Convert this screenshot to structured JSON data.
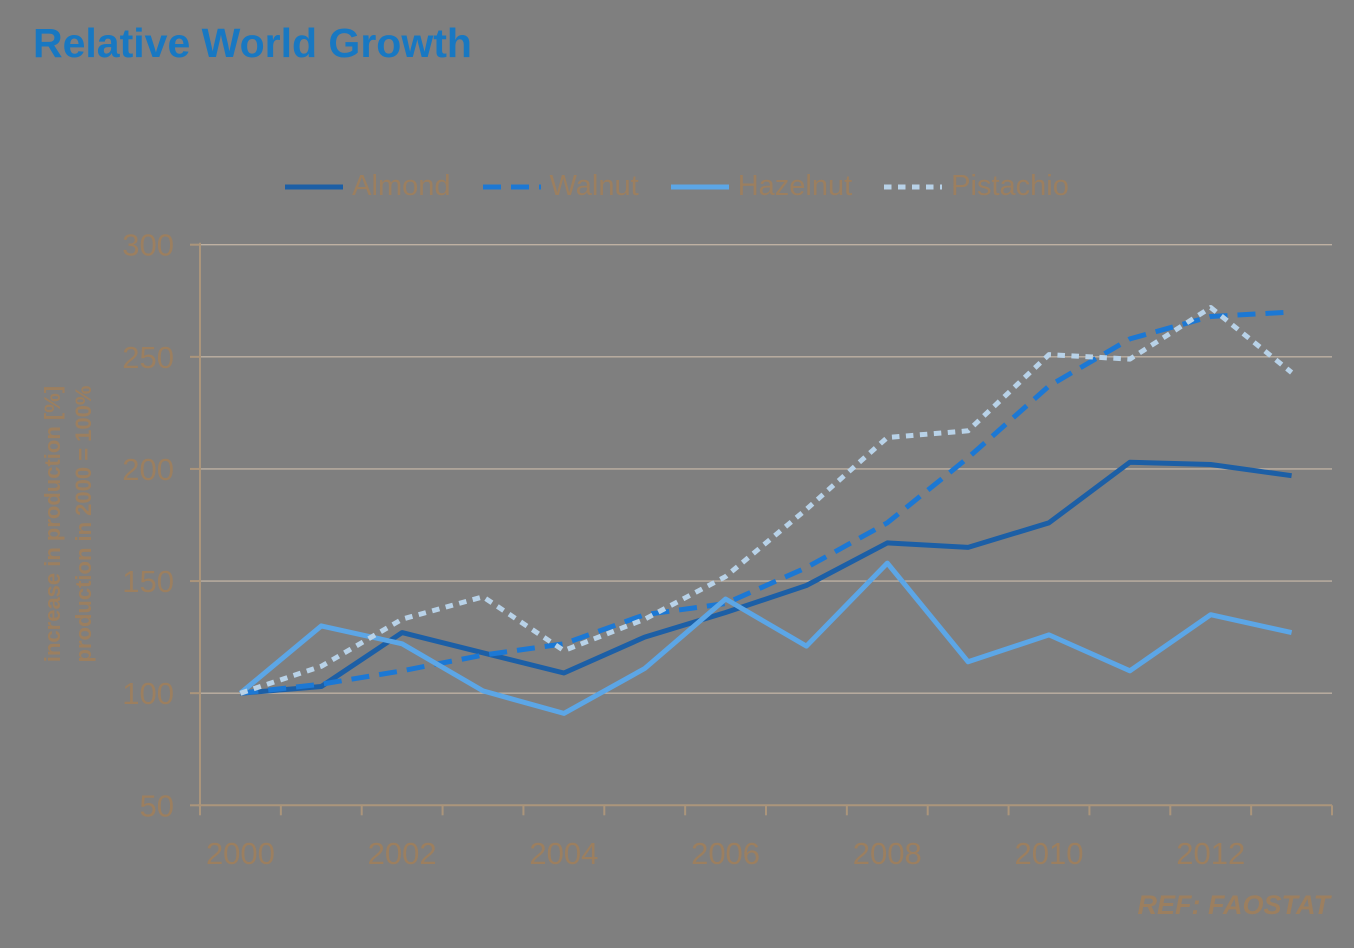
{
  "title": "Relative World Growth",
  "source_note": "REF: FAOSTAT",
  "colors": {
    "background": "#7f7f7f",
    "title": "#1878c2",
    "text_tan": "#9c7f5f",
    "gridline": "#beb0a2",
    "axis": "#ab957b",
    "almond": "#1c5fa6",
    "walnut": "#1c78d4",
    "hazelnut": "#5ca6e6",
    "pistachio": "#b8d2e8"
  },
  "y_axis": {
    "title_line1": "increase in production [%]",
    "title_line2": "production in 2000 = 100%",
    "ticks": [
      300,
      250,
      200,
      150,
      100,
      50
    ]
  },
  "x_axis": {
    "tick_labels": [
      "2000",
      "2002",
      "2004",
      "2006",
      "2008",
      "2010",
      "2012"
    ]
  },
  "chart_data": {
    "type": "line",
    "x": [
      2000,
      2001,
      2002,
      2003,
      2004,
      2005,
      2006,
      2007,
      2008,
      2009,
      2010,
      2011,
      2012,
      2013
    ],
    "series": [
      {
        "name": "Almond",
        "color": "#1c5fa6",
        "style": "solid",
        "values": [
          100,
          103,
          127,
          118,
          109,
          125,
          136,
          148,
          167,
          165,
          176,
          203,
          202,
          197
        ]
      },
      {
        "name": "Walnut",
        "color": "#1c78d4",
        "style": "dashed",
        "values": [
          100,
          104,
          110,
          117,
          122,
          135,
          140,
          156,
          176,
          205,
          237,
          258,
          268,
          270
        ]
      },
      {
        "name": "Hazelnut",
        "color": "#5ca6e6",
        "style": "solid",
        "values": [
          100,
          130,
          122,
          101,
          91,
          111,
          142,
          121,
          158,
          114,
          126,
          110,
          135,
          127
        ]
      },
      {
        "name": "Pistachio",
        "color": "#b8d2e8",
        "style": "dotted",
        "values": [
          100,
          112,
          133,
          143,
          119,
          133,
          152,
          182,
          214,
          217,
          251,
          249,
          272,
          243
        ]
      }
    ],
    "ylabel": "increase in production [%] / production in 2000 = 100%",
    "ylim": [
      50,
      300
    ],
    "y_gridline_step": 50,
    "grid": true,
    "legend_position": "top"
  }
}
